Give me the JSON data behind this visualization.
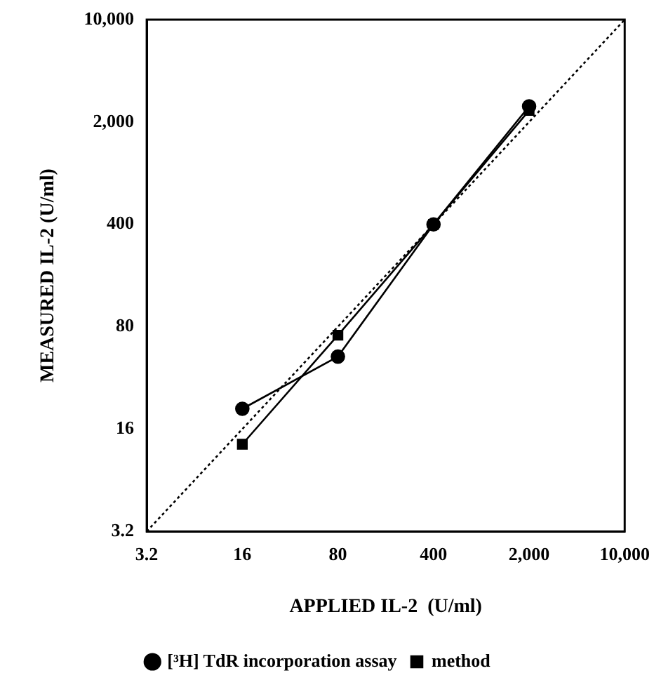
{
  "chart_data": {
    "type": "line",
    "xlabel": "APPLIED IL-2  (U/ml)",
    "ylabel": "MEASURED IL-2 (U/ml)",
    "log": "xy",
    "grid": false,
    "legend": "bottom",
    "xlim": [
      3.2,
      10000
    ],
    "ylim": [
      3.2,
      10000
    ],
    "xticks": [
      3.2,
      16,
      80,
      400,
      {
        "value": 2000,
        "label": "2,000"
      },
      {
        "value": 10000,
        "label": "10,000"
      }
    ],
    "yticks": [
      3.2,
      16,
      80,
      400,
      {
        "value": 2000,
        "label": "2,000"
      },
      {
        "value": 10000,
        "label": "10,000"
      }
    ],
    "x": [
      16,
      80,
      400,
      2000
    ],
    "series": [
      {
        "name": "[³H] TdR incorporation assay",
        "color": "#000000",
        "marker": "circle",
        "values": [
          22,
          50,
          400,
          2560
        ]
      },
      {
        "name": "method",
        "color": "#000000",
        "marker": "square",
        "values": [
          12.6,
          70,
          400,
          2400
        ]
      },
      {
        "color": "#000000",
        "x": [
          3.2,
          10000
        ],
        "values": [
          3.2,
          10000
        ],
        "marker": "none",
        "line_style": "dotted"
      }
    ]
  }
}
